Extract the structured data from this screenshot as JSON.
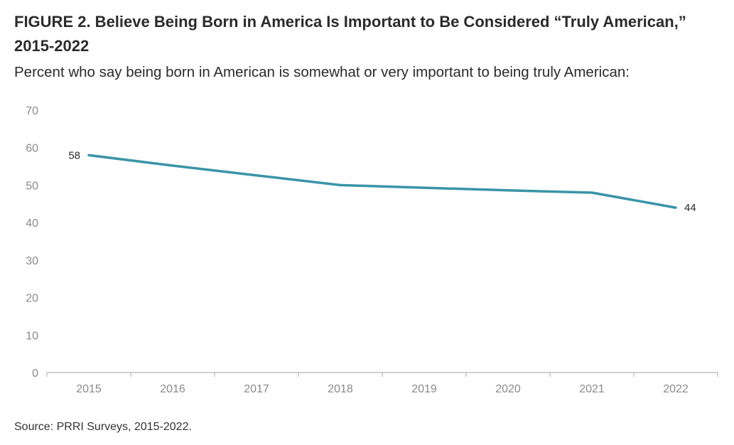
{
  "figure": {
    "title": "FIGURE 2.  Believe Being Born in America Is Important to Be Considered “Truly American,” 2015-2022",
    "subtitle": "Percent who say being born in American is somewhat or very important to being truly American:",
    "source": "Source: PRRI Surveys, 2015-2022."
  },
  "chart_data": {
    "type": "line",
    "title": "FIGURE 2.  Believe Being Born in America Is Important to Be Considered “Truly American,” 2015-2022",
    "xlabel": "",
    "ylabel": "",
    "x": [
      "2015",
      "2016",
      "2017",
      "2018",
      "2019",
      "2020",
      "2021",
      "2022"
    ],
    "series": [
      {
        "values": [
          58,
          55.2,
          52.6,
          50,
          49.3,
          48.6,
          48,
          44
        ],
        "color": "#3a94a8"
      }
    ],
    "data_labels": [
      {
        "index": 0,
        "text": "58",
        "position": "left"
      },
      {
        "index": 7,
        "text": "44",
        "position": "right"
      }
    ],
    "ylim": [
      0,
      70
    ],
    "yticks": [
      0,
      10,
      20,
      30,
      40,
      50,
      60,
      70
    ],
    "grid": false,
    "legend": "none",
    "axis_color": "#b3b3b3"
  }
}
